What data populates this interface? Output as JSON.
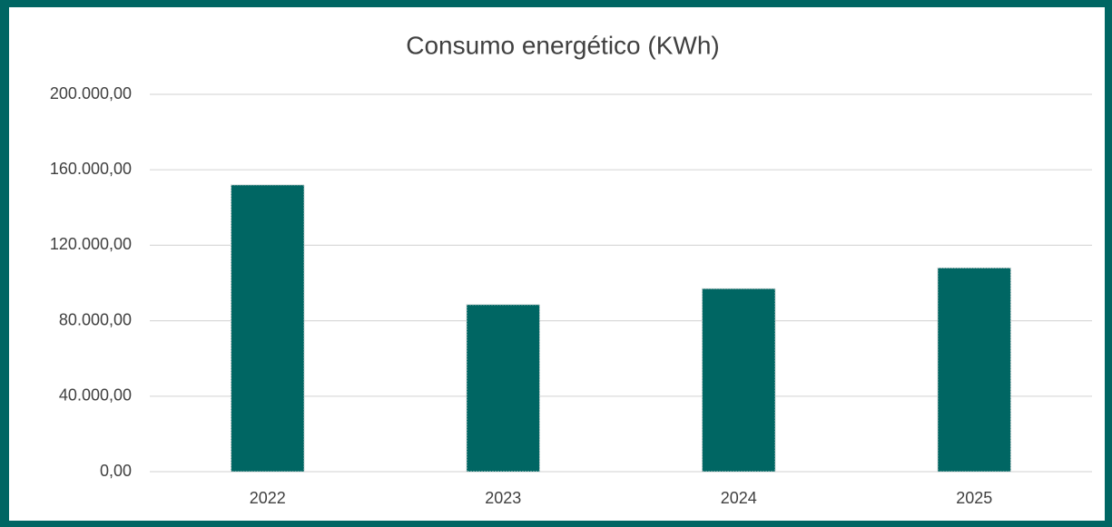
{
  "chart_data": {
    "type": "bar",
    "title": "Consumo energético (KWh)",
    "categories": [
      "2022",
      "2023",
      "2024",
      "2025"
    ],
    "values": [
      152000,
      88500,
      97000,
      108000
    ],
    "color": "#006663",
    "ylim": [
      0,
      200000
    ],
    "yticks": [
      {
        "value": 0,
        "label": "0,00"
      },
      {
        "value": 40000,
        "label": "40.000,00"
      },
      {
        "value": 80000,
        "label": "80.000,00"
      },
      {
        "value": 120000,
        "label": "120.000,00"
      },
      {
        "value": 160000,
        "label": "160.000,00"
      },
      {
        "value": 200000,
        "label": "200.000,00"
      }
    ],
    "grid": true
  }
}
